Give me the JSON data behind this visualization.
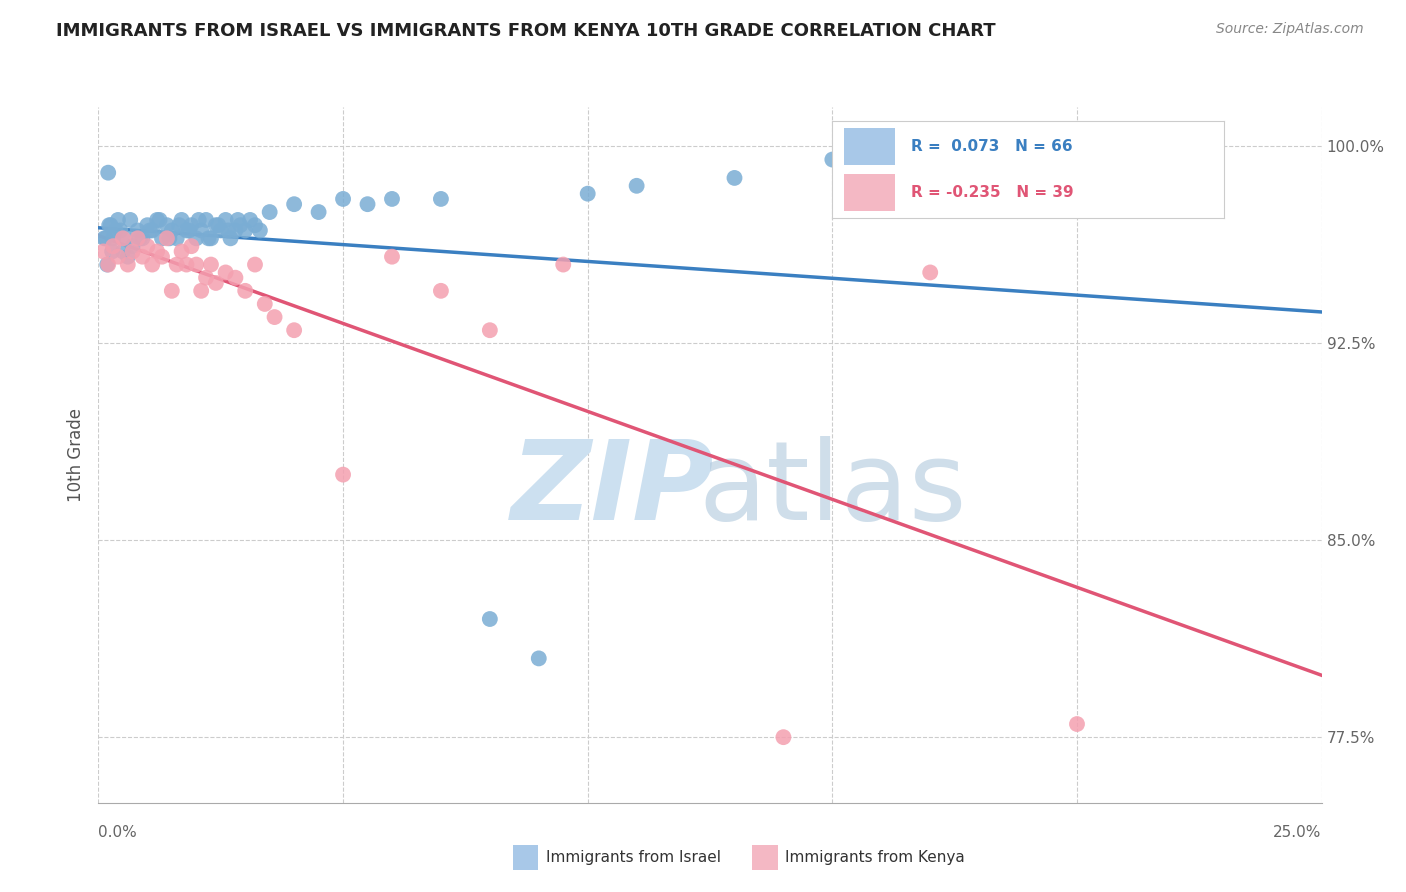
{
  "title": "IMMIGRANTS FROM ISRAEL VS IMMIGRANTS FROM KENYA 10TH GRADE CORRELATION CHART",
  "source": "Source: ZipAtlas.com",
  "ylabel": "10th Grade",
  "xmin": 0.0,
  "xmax": 25.0,
  "ymin": 75.0,
  "ymax": 101.5,
  "yticks": [
    77.5,
    85.0,
    92.5,
    100.0
  ],
  "ytick_labels": [
    "77.5%",
    "85.0%",
    "92.5%",
    "100.0%"
  ],
  "israel_R": 0.073,
  "israel_N": 66,
  "kenya_R": -0.235,
  "kenya_N": 39,
  "israel_color": "#7aadd4",
  "kenya_color": "#f4a0b0",
  "israel_line_color": "#3a7fc1",
  "kenya_line_color": "#e05575",
  "legend_israel_color": "#a8c8e8",
  "legend_kenya_color": "#f4b8c4",
  "background_color": "#ffffff",
  "grid_color": "#cccccc",
  "israel_x": [
    0.12,
    0.25,
    0.18,
    0.35,
    0.4,
    0.28,
    0.55,
    0.6,
    0.7,
    0.8,
    0.9,
    1.0,
    1.1,
    1.2,
    1.3,
    1.4,
    1.5,
    1.6,
    1.7,
    1.8,
    1.9,
    2.0,
    2.1,
    2.2,
    2.3,
    2.4,
    2.5,
    2.6,
    2.7,
    2.8,
    2.9,
    3.0,
    3.1,
    3.2,
    3.3,
    0.15,
    0.22,
    0.45,
    0.65,
    0.85,
    1.05,
    1.25,
    1.45,
    1.65,
    1.85,
    2.05,
    2.25,
    2.45,
    2.65,
    2.85,
    3.5,
    4.0,
    4.5,
    5.0,
    5.5,
    6.0,
    7.0,
    8.0,
    9.0,
    10.0,
    11.0,
    13.0,
    15.0,
    0.2,
    0.3,
    0.5
  ],
  "israel_y": [
    96.5,
    97.0,
    95.5,
    96.8,
    97.2,
    96.0,
    96.5,
    95.8,
    96.2,
    96.8,
    96.5,
    97.0,
    96.8,
    97.2,
    96.5,
    97.0,
    96.8,
    96.5,
    97.2,
    96.8,
    97.0,
    96.5,
    96.8,
    97.2,
    96.5,
    97.0,
    96.8,
    97.2,
    96.5,
    96.8,
    97.0,
    96.8,
    97.2,
    97.0,
    96.8,
    96.5,
    97.0,
    96.8,
    97.2,
    96.5,
    96.8,
    97.2,
    96.5,
    97.0,
    96.8,
    97.2,
    96.5,
    97.0,
    96.8,
    97.2,
    97.5,
    97.8,
    97.5,
    98.0,
    97.8,
    98.0,
    98.0,
    82.0,
    80.5,
    98.2,
    98.5,
    98.8,
    99.5,
    99.0,
    96.5,
    96.0
  ],
  "kenya_x": [
    0.1,
    0.2,
    0.3,
    0.4,
    0.5,
    0.6,
    0.7,
    0.8,
    0.9,
    1.0,
    1.1,
    1.2,
    1.3,
    1.4,
    1.5,
    1.6,
    1.7,
    1.8,
    1.9,
    2.0,
    2.1,
    2.2,
    2.3,
    2.4,
    2.6,
    2.8,
    3.0,
    3.2,
    3.4,
    3.6,
    4.0,
    5.0,
    6.0,
    7.0,
    8.0,
    9.5,
    14.0,
    17.0,
    20.0
  ],
  "kenya_y": [
    96.0,
    95.5,
    96.2,
    95.8,
    96.5,
    95.5,
    96.0,
    96.5,
    95.8,
    96.2,
    95.5,
    96.0,
    95.8,
    96.5,
    94.5,
    95.5,
    96.0,
    95.5,
    96.2,
    95.5,
    94.5,
    95.0,
    95.5,
    94.8,
    95.2,
    95.0,
    94.5,
    95.5,
    94.0,
    93.5,
    93.0,
    87.5,
    95.8,
    94.5,
    93.0,
    95.5,
    77.5,
    95.2,
    78.0
  ]
}
